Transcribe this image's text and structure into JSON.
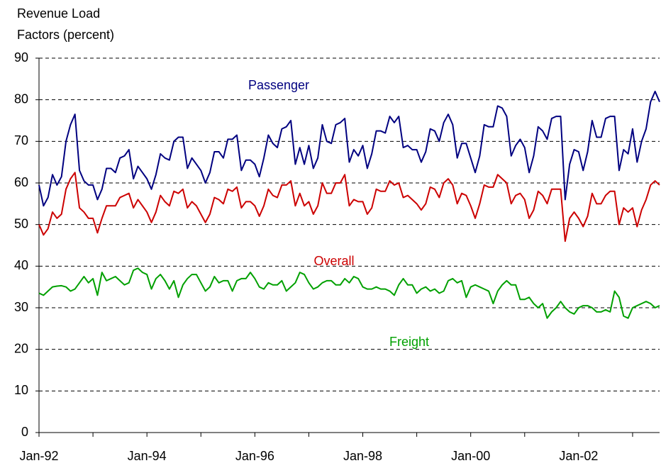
{
  "chart_data": {
    "type": "line",
    "ylabel": [
      "Revenue Load",
      "Factors (percent)"
    ],
    "categories": [
      "Jan-92",
      null,
      null,
      null,
      null,
      null,
      null,
      null,
      null,
      null,
      null,
      null,
      null,
      null,
      null,
      null,
      null,
      null,
      null,
      null,
      null,
      null,
      null,
      null,
      "Jan-94",
      null,
      null,
      null,
      null,
      null,
      null,
      null,
      null,
      null,
      null,
      null,
      null,
      null,
      null,
      null,
      null,
      null,
      null,
      null,
      null,
      null,
      null,
      null,
      "Jan-96",
      null,
      null,
      null,
      null,
      null,
      null,
      null,
      null,
      null,
      null,
      null,
      null,
      null,
      null,
      null,
      null,
      null,
      null,
      null,
      null,
      null,
      null,
      null,
      "Jan-98",
      null,
      null,
      null,
      null,
      null,
      null,
      null,
      null,
      null,
      null,
      null,
      null,
      null,
      null,
      null,
      null,
      null,
      null,
      null,
      null,
      null,
      null,
      null,
      "Jan-00",
      null,
      null,
      null,
      null,
      null,
      null,
      null,
      null,
      null,
      null,
      null,
      null,
      null,
      null,
      null,
      null,
      null,
      null,
      null,
      null,
      null,
      null,
      null,
      "Jan-02",
      null,
      null,
      null,
      null,
      null,
      null,
      null,
      null,
      null,
      null,
      null,
      null,
      null,
      null,
      null,
      null,
      null,
      null
    ],
    "series": [
      {
        "name": "Passenger",
        "color": "#000080",
        "values": [
          59.5,
          54.5,
          56.5,
          62,
          59.5,
          61.5,
          70,
          74,
          76.5,
          63,
          60.5,
          59.5,
          59.5,
          56,
          58.5,
          63.5,
          63.5,
          62.5,
          66,
          66.5,
          68,
          61,
          64,
          62.5,
          61,
          58.5,
          62,
          67,
          66,
          65.5,
          70,
          71,
          71,
          63.5,
          66,
          64.5,
          63,
          60,
          62.5,
          67.5,
          67.5,
          66,
          70.5,
          70.5,
          71.5,
          63,
          65.5,
          65.5,
          64.5,
          61.5,
          66,
          71.5,
          69.5,
          68.5,
          73,
          73.5,
          75,
          64.5,
          68.5,
          64.5,
          69,
          63.5,
          66,
          74,
          70,
          69.5,
          74,
          74.5,
          75.5,
          65,
          68,
          66.5,
          69,
          63.5,
          67,
          72.5,
          72.5,
          72,
          76,
          74.5,
          76,
          68.5,
          69,
          68,
          68,
          65,
          67.5,
          73,
          72.5,
          70,
          74.5,
          76.5,
          74,
          66,
          69.5,
          69.5,
          66,
          62.5,
          66.5,
          74,
          73.5,
          73.5,
          78.5,
          78,
          76,
          66.5,
          69,
          70.5,
          68.5,
          62.5,
          66.5,
          73.5,
          72.5,
          70.5,
          75.5,
          76,
          76,
          56,
          64.5,
          68,
          67.5,
          63,
          67.5,
          75,
          71,
          71,
          75.5,
          76,
          76,
          63,
          68,
          67,
          73,
          65,
          70,
          73,
          79.5,
          82,
          79.5
        ]
      },
      {
        "name": "Overall",
        "color": "#cc0000",
        "values": [
          50,
          47.5,
          49,
          53,
          51.5,
          52.5,
          58.5,
          61,
          62.5,
          54,
          53,
          51.5,
          51.5,
          48,
          51.5,
          54.5,
          54.5,
          54.5,
          56.5,
          57,
          57.5,
          54,
          56,
          54.5,
          53,
          50.5,
          53,
          57,
          55.5,
          54.5,
          58,
          57.5,
          58.5,
          54,
          55.5,
          54.5,
          52.5,
          50.5,
          52.5,
          56.5,
          56,
          55,
          58.5,
          58,
          59,
          54,
          55.5,
          55.5,
          54.5,
          52,
          54.5,
          58.5,
          57,
          56.5,
          59.5,
          59.5,
          60.5,
          54.5,
          57.5,
          54.5,
          55.5,
          52.5,
          54.5,
          60,
          57.5,
          57.5,
          60,
          60,
          62,
          54.5,
          56,
          55.5,
          55.5,
          52.5,
          54,
          58.5,
          58,
          58,
          60.5,
          59.5,
          60,
          56.5,
          57,
          56,
          55,
          53.5,
          55,
          59,
          58.5,
          56.5,
          60,
          61,
          59.5,
          55,
          57.5,
          57,
          54.5,
          51.5,
          55,
          59.5,
          59,
          59,
          62,
          61,
          60,
          55,
          57,
          57.5,
          56,
          51.5,
          53.5,
          58,
          57,
          55,
          58.5,
          58.5,
          58.5,
          46,
          51.5,
          53,
          51.5,
          49.5,
          52,
          57.5,
          55,
          55,
          57,
          58,
          58,
          50,
          54,
          53,
          54,
          49.5,
          53.5,
          56,
          59.5,
          60.5,
          59.5
        ]
      },
      {
        "name": "Freight",
        "color": "#00a000",
        "values": [
          33.5,
          33,
          34,
          35,
          35.2,
          35.3,
          35,
          34,
          34.5,
          36,
          37.5,
          36,
          37,
          33,
          38.5,
          36.5,
          37,
          37.5,
          36.5,
          35.5,
          36,
          39,
          39.5,
          38.5,
          38,
          34.5,
          37,
          38,
          36.5,
          34.5,
          36.5,
          32.5,
          35.5,
          37,
          38,
          38,
          36,
          34,
          35,
          37.5,
          36,
          36.5,
          36.5,
          34,
          36.5,
          37,
          37,
          38.5,
          37,
          35,
          34.5,
          36,
          35.5,
          35.5,
          36.5,
          34,
          35,
          36,
          38.5,
          38,
          36,
          34.5,
          35,
          36,
          36.5,
          36.5,
          35.5,
          35.5,
          37,
          36,
          37.5,
          37,
          35,
          34.5,
          34.5,
          35,
          34.5,
          34.5,
          34,
          33,
          35.5,
          37,
          35.5,
          35.5,
          33.5,
          34.5,
          35,
          34,
          34.5,
          33.5,
          34,
          36.5,
          37,
          36,
          36.5,
          32.5,
          35,
          35.5,
          35,
          34.5,
          34,
          31,
          34,
          35.5,
          36.5,
          35.5,
          35.5,
          32,
          32,
          32.5,
          31,
          30,
          31,
          27.5,
          29,
          30,
          31.5,
          30,
          29,
          28.5,
          30,
          30.5,
          30.5,
          30,
          29,
          29,
          29.5,
          29,
          34,
          32.5,
          28,
          27.5,
          30,
          30.5,
          31,
          31.5,
          31,
          30,
          30.5
        ]
      }
    ],
    "ylim": [
      0,
      90
    ],
    "yticks": [
      0,
      10,
      20,
      30,
      40,
      50,
      60,
      70,
      80,
      90
    ],
    "grid": true
  }
}
